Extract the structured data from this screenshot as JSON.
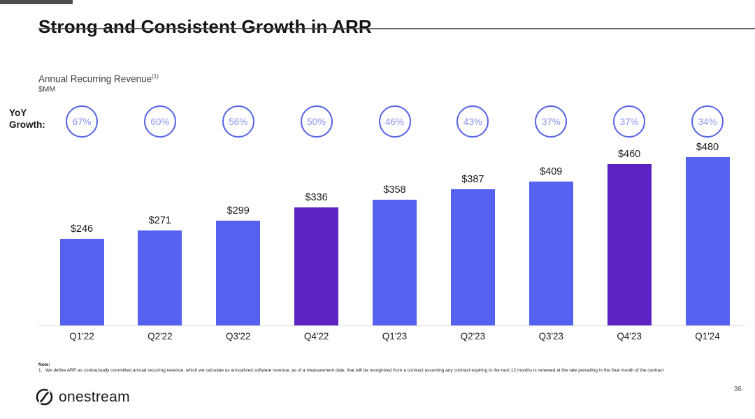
{
  "slide": {
    "title": "Strong and Consistent Growth in ARR",
    "page_number": "36"
  },
  "chart_header": {
    "metric_label": "Annual Recurring Revenue",
    "footnote_marker": "(1)",
    "unit_label": "$MM",
    "yoy_label_line1": "YoY",
    "yoy_label_line2": "Growth:"
  },
  "chart_data": {
    "type": "bar",
    "title": "Annual Recurring Revenue ($MM)",
    "categories": [
      "Q1'22",
      "Q2'22",
      "Q3'22",
      "Q4'22",
      "Q1'23",
      "Q2'23",
      "Q3'23",
      "Q4'23",
      "Q1'24"
    ],
    "values": [
      246,
      271,
      299,
      336,
      358,
      387,
      409,
      460,
      480
    ],
    "value_labels": [
      "$246",
      "$271",
      "$299",
      "$336",
      "$358",
      "$387",
      "$409",
      "$460",
      "$480"
    ],
    "yoy_growth_labels": [
      "67%",
      "60%",
      "56%",
      "50%",
      "46%",
      "43%",
      "37%",
      "37%",
      "34%"
    ],
    "highlight_indices": [
      3,
      7
    ],
    "ylim": [
      0,
      480
    ],
    "grid": false,
    "legend": "none",
    "colors": {
      "bar": "#5562ef",
      "bar_highlight": "#5c23c3",
      "circle_border": "#5766e5",
      "circle_text": "#8a93ee"
    }
  },
  "footer": {
    "note_heading": "Note:",
    "note_item_number": "1.",
    "note_text": "We define ARR as contractually committed annual recurring revenue, which we calculate as annualized software revenue, as of a measurement date, that will be recognized from a contract assuming any contract expiring in the next 12 months is renewed at the rate prevailing in the final month of the contract",
    "logo_text": "onestream"
  }
}
